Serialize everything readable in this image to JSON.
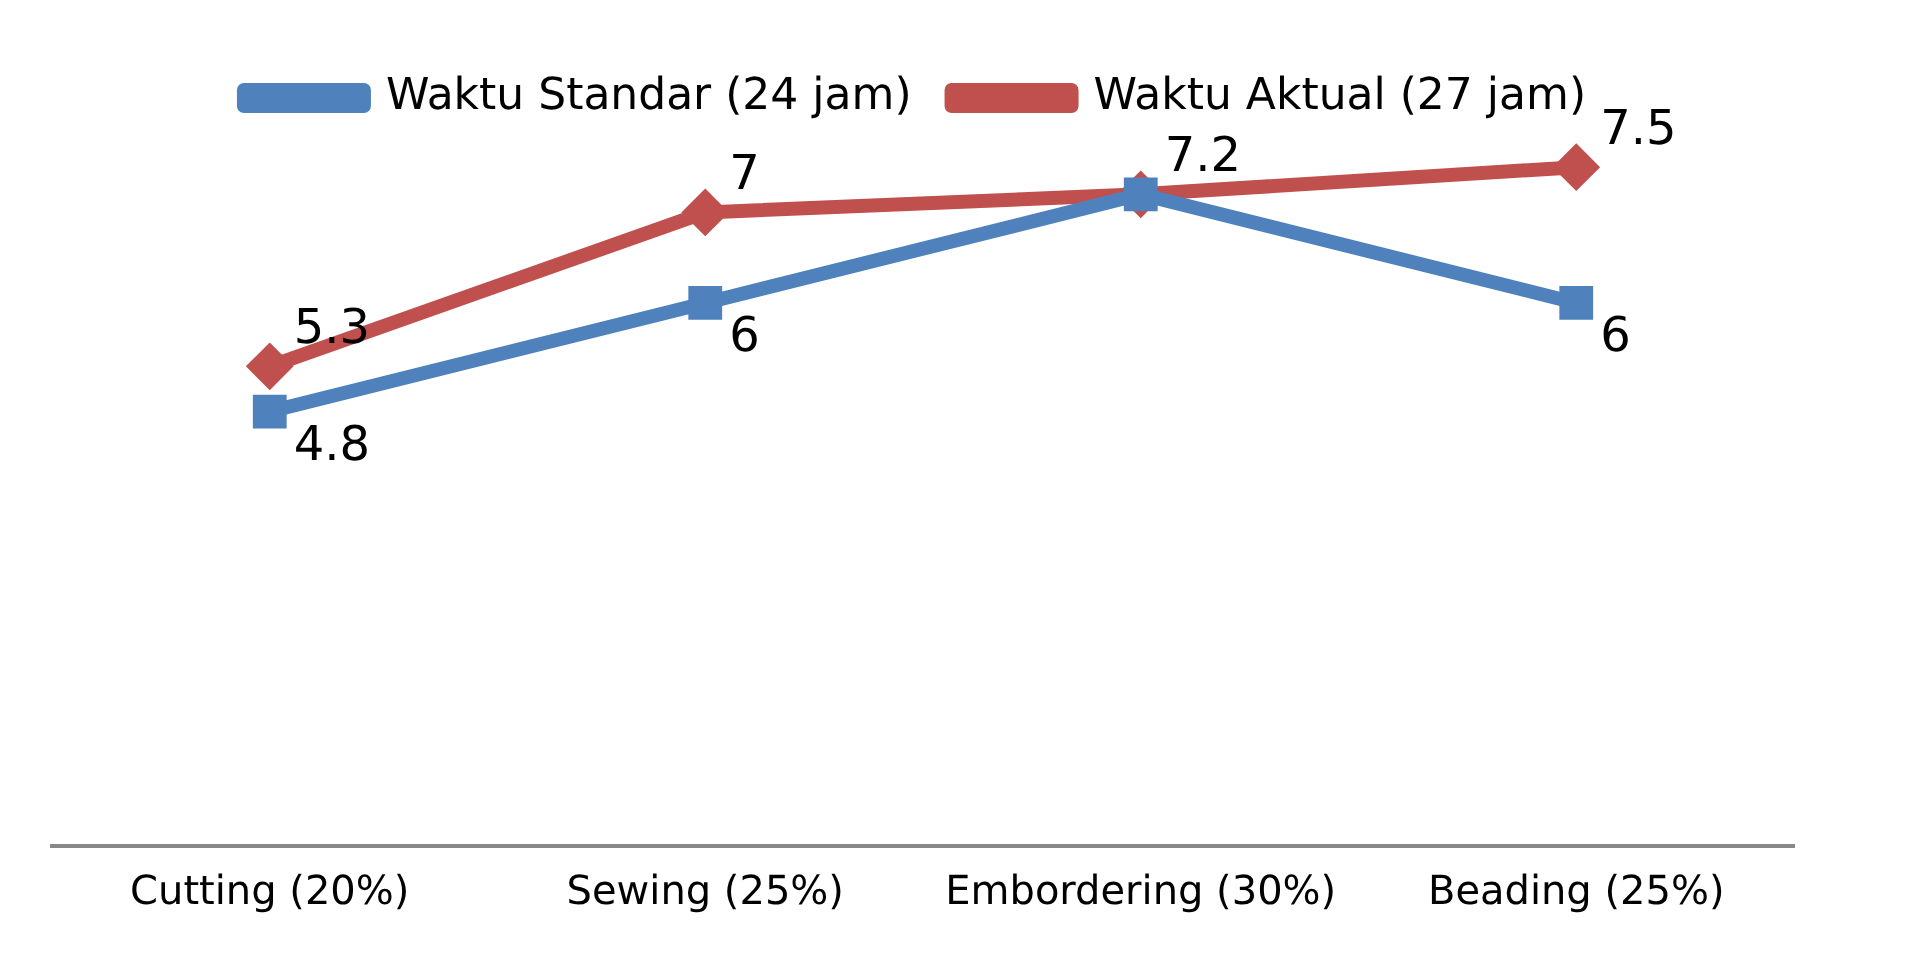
{
  "chart_data": {
    "type": "line",
    "categories": [
      "Cutting (20%)",
      "Sewing (25%)",
      "Embordering (30%)",
      "Beading (25%)"
    ],
    "series": [
      {
        "name": "Waktu Standar (24 jam)",
        "color": "#4f81bd",
        "marker": "square",
        "values": [
          4.8,
          6,
          7.2,
          6
        ],
        "value_labels": [
          "4.8",
          "6",
          null,
          "6"
        ]
      },
      {
        "name": "Waktu Aktual (27 jam)",
        "color": "#c0504d",
        "marker": "diamond",
        "values": [
          5.3,
          7,
          7.2,
          7.5
        ],
        "value_labels": [
          "5.3",
          "7",
          "7.2",
          "7.5"
        ]
      }
    ],
    "legend": "top",
    "grid": false,
    "line_style": "solid"
  }
}
